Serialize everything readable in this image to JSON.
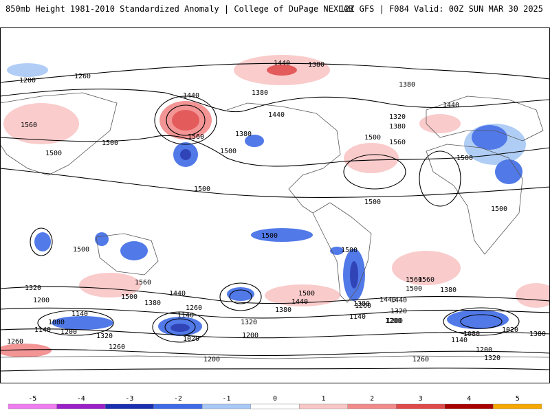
{
  "header": {
    "left": "850mb Height 1981-2010 Standardized Anomaly | College of DuPage NEXLAB",
    "right": "12Z GFS | F084 Valid: 00Z SUN MAR 30 2025"
  },
  "map": {
    "projection": "cylindrical-equidistant",
    "contour_labels": [
      "1440",
      "1380",
      "1260",
      "1200",
      "1440",
      "1380",
      "1560",
      "1500",
      "1500",
      "1560",
      "1380",
      "1500",
      "1500",
      "1440",
      "1500",
      "1380",
      "1320",
      "1380",
      "1440",
      "1560",
      "1500",
      "1500",
      "1500",
      "1500",
      "1500",
      "1560",
      "1500",
      "1440",
      "1560",
      "1380",
      "1320",
      "1200",
      "1500",
      "1440",
      "1380",
      "1260",
      "1140",
      "1080",
      "1140",
      "1200",
      "1320",
      "1260",
      "1200",
      "1320",
      "1140",
      "1020",
      "1200",
      "1260",
      "1440",
      "1500",
      "1380",
      "1320",
      "1440",
      "1560",
      "1500",
      "1380",
      "1260",
      "1200",
      "1140",
      "1080",
      "1140",
      "1020",
      "1200",
      "1320",
      "1260",
      "1200",
      "1380"
    ]
  },
  "colorbar": {
    "ticks": [
      "-5",
      "-4",
      "-3",
      "-2",
      "-1",
      "0",
      "1",
      "2",
      "3",
      "4",
      "5"
    ],
    "colors": [
      "#f07cf0",
      "#9b20c8",
      "#1a2fb0",
      "#3f6be6",
      "#a8c8f5",
      "#ffffff",
      "#f9c6c6",
      "#f28a8a",
      "#e04a4a",
      "#a80000",
      "#f4a800"
    ]
  }
}
